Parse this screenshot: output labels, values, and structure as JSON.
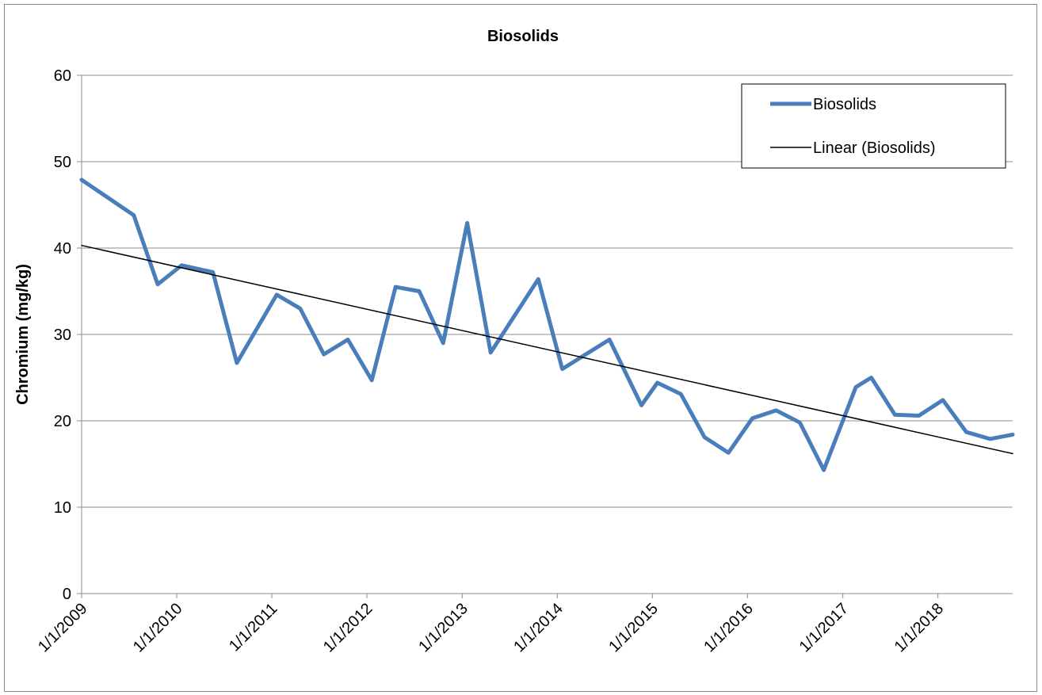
{
  "chart_data": {
    "type": "line",
    "title": "Biosolids",
    "xlabel": "",
    "ylabel": "Chromium (mg/kg)",
    "ylim": [
      0,
      60
    ],
    "yticks": [
      0,
      10,
      20,
      30,
      40,
      50,
      60
    ],
    "xlim": [
      "2009-01-01",
      "2018-10-15"
    ],
    "x_tick_labels": [
      "1/1/2009",
      "1/1/2010",
      "1/1/2011",
      "1/1/2012",
      "1/1/2013",
      "1/1/2014",
      "1/1/2015",
      "1/1/2016",
      "1/1/2017",
      "1/1/2018"
    ],
    "x_tick_dates": [
      "2009-01-01",
      "2010-01-01",
      "2011-01-01",
      "2012-01-01",
      "2013-01-01",
      "2014-01-01",
      "2015-01-01",
      "2016-01-01",
      "2017-01-01",
      "2018-01-01"
    ],
    "grid": true,
    "legend_position": "top-right",
    "series": [
      {
        "name": "Biosolids",
        "color": "#4a7ebb",
        "points": [
          {
            "x": "2009-01-01",
            "y": 47.9
          },
          {
            "x": "2009-07-20",
            "y": 43.8
          },
          {
            "x": "2009-10-20",
            "y": 35.8
          },
          {
            "x": "2010-01-20",
            "y": 38.0
          },
          {
            "x": "2010-05-20",
            "y": 37.2
          },
          {
            "x": "2010-08-20",
            "y": 26.7
          },
          {
            "x": "2011-01-20",
            "y": 34.6
          },
          {
            "x": "2011-04-20",
            "y": 33.0
          },
          {
            "x": "2011-07-20",
            "y": 27.7
          },
          {
            "x": "2011-10-20",
            "y": 29.4
          },
          {
            "x": "2012-01-20",
            "y": 24.7
          },
          {
            "x": "2012-04-20",
            "y": 35.5
          },
          {
            "x": "2012-07-20",
            "y": 35.0
          },
          {
            "x": "2012-10-20",
            "y": 29.0
          },
          {
            "x": "2013-01-20",
            "y": 42.9
          },
          {
            "x": "2013-04-20",
            "y": 27.9
          },
          {
            "x": "2013-10-20",
            "y": 36.4
          },
          {
            "x": "2014-01-20",
            "y": 26.0
          },
          {
            "x": "2014-04-20",
            "y": 27.7
          },
          {
            "x": "2014-07-20",
            "y": 29.4
          },
          {
            "x": "2014-11-20",
            "y": 21.8
          },
          {
            "x": "2015-01-20",
            "y": 24.4
          },
          {
            "x": "2015-04-20",
            "y": 23.1
          },
          {
            "x": "2015-07-20",
            "y": 18.1
          },
          {
            "x": "2015-10-20",
            "y": 16.3
          },
          {
            "x": "2016-01-20",
            "y": 20.3
          },
          {
            "x": "2016-04-20",
            "y": 21.2
          },
          {
            "x": "2016-07-20",
            "y": 19.8
          },
          {
            "x": "2016-10-20",
            "y": 14.3
          },
          {
            "x": "2017-02-20",
            "y": 23.9
          },
          {
            "x": "2017-04-20",
            "y": 25.0
          },
          {
            "x": "2017-07-20",
            "y": 20.7
          },
          {
            "x": "2017-10-20",
            "y": 20.6
          },
          {
            "x": "2018-01-20",
            "y": 22.4
          },
          {
            "x": "2018-04-20",
            "y": 18.7
          },
          {
            "x": "2018-07-20",
            "y": 17.9
          },
          {
            "x": "2018-10-15",
            "y": 18.4
          }
        ]
      },
      {
        "name": "Linear (Biosolids)",
        "color": "#000000",
        "trendline": true,
        "points": [
          {
            "x": "2009-01-01",
            "y": 40.3
          },
          {
            "x": "2018-10-15",
            "y": 16.2
          }
        ]
      }
    ]
  }
}
